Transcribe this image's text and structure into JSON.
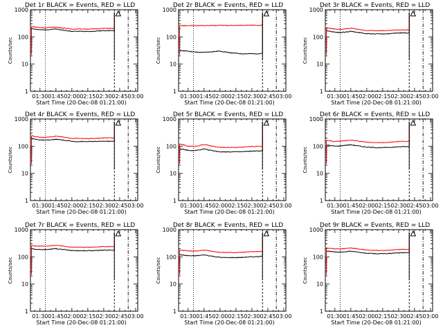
{
  "colors": {
    "events": "#000000",
    "lld": "#ff0000",
    "axes": "#000000"
  },
  "chart_data": [
    {
      "type": "line",
      "title": "Det 1r BLACK = Events, RED = LLD",
      "xlabel": "Start Time (20-Dec-08 01:21:00)",
      "ylabel": "Counts/sec",
      "x_tick_labels": [
        "01:30",
        "01:45",
        "02:00",
        "02:15",
        "02:30",
        "02:45",
        "03:00"
      ],
      "y_tick_labels": [
        "1",
        "10",
        "100",
        "1000"
      ],
      "ylim": [
        1,
        1000
      ],
      "y_scale": "log",
      "x_ticks_minutes": [
        90,
        105,
        120,
        135,
        150,
        165,
        180
      ],
      "xlim_minutes": [
        81,
        182
      ],
      "vertical_markers_minutes": {
        "dotted": 95,
        "dashed": 160,
        "dashdot": 173
      },
      "triangle_marker_minutes": 161,
      "x_minutes": [
        82,
        86,
        90,
        95,
        100,
        105,
        110,
        115,
        120,
        125,
        130,
        135,
        140,
        145,
        150,
        155,
        160
      ],
      "series": [
        {
          "name": "Events",
          "color": "#000000",
          "values": [
            200,
            190,
            185,
            180,
            190,
            195,
            180,
            170,
            160,
            160,
            160,
            160,
            160,
            165,
            170,
            170,
            170
          ]
        },
        {
          "name": "LLD",
          "color": "#ff0000",
          "values": [
            240,
            230,
            220,
            215,
            225,
            230,
            215,
            205,
            195,
            195,
            195,
            195,
            195,
            200,
            205,
            205,
            205
          ]
        }
      ]
    },
    {
      "type": "line",
      "title": "Det 2r BLACK = Events, RED = LLD",
      "xlabel": "Start Time (20-Dec-08 01:21:00)",
      "ylabel": "Counts/sec",
      "x_tick_labels": [
        "01:30",
        "01:45",
        "02:00",
        "02:15",
        "02:30",
        "02:45",
        "03:00"
      ],
      "y_tick_labels": [
        "1",
        "10",
        "100",
        "1000"
      ],
      "ylim": [
        1,
        1000
      ],
      "y_scale": "log",
      "x_ticks_minutes": [
        90,
        105,
        120,
        135,
        150,
        165,
        180
      ],
      "xlim_minutes": [
        81,
        182
      ],
      "vertical_markers_minutes": {
        "dotted": 95,
        "dashed": 160,
        "dashdot": 173
      },
      "triangle_marker_minutes": 161,
      "x_minutes": [
        82,
        86,
        90,
        95,
        100,
        105,
        110,
        115,
        120,
        125,
        130,
        135,
        140,
        145,
        150,
        155,
        160
      ],
      "series": [
        {
          "name": "Events",
          "color": "#000000",
          "values": [
            32,
            31,
            30,
            28,
            27,
            27,
            28,
            29,
            30,
            28,
            26,
            25,
            24,
            24,
            24,
            24,
            25
          ]
        },
        {
          "name": "LLD",
          "color": "#ff0000",
          "values": [
            260,
            260,
            260,
            260,
            260,
            262,
            262,
            262,
            265,
            265,
            265,
            265,
            268,
            268,
            268,
            268,
            270
          ]
        }
      ]
    },
    {
      "type": "line",
      "title": "Det 3r BLACK = Events, RED = LLD",
      "xlabel": "Start Time (20-Dec-08 01:21:00)",
      "ylabel": "Counts/sec",
      "x_tick_labels": [
        "01:30",
        "01:45",
        "02:00",
        "02:15",
        "02:30",
        "02:45",
        "03:00"
      ],
      "y_tick_labels": [
        "1",
        "10",
        "100",
        "1000"
      ],
      "ylim": [
        1,
        1000
      ],
      "y_scale": "log",
      "x_ticks_minutes": [
        90,
        105,
        120,
        135,
        150,
        165,
        180
      ],
      "xlim_minutes": [
        81,
        182
      ],
      "vertical_markers_minutes": {
        "dotted": 95,
        "dashed": 160,
        "dashdot": 173
      },
      "triangle_marker_minutes": 161,
      "x_minutes": [
        82,
        86,
        90,
        95,
        100,
        105,
        110,
        115,
        120,
        125,
        130,
        135,
        140,
        145,
        150,
        155,
        160
      ],
      "series": [
        {
          "name": "Events",
          "color": "#000000",
          "values": [
            170,
            160,
            150,
            145,
            150,
            160,
            150,
            140,
            130,
            130,
            130,
            130,
            130,
            135,
            140,
            140,
            140
          ]
        },
        {
          "name": "LLD",
          "color": "#ff0000",
          "values": [
            220,
            205,
            195,
            190,
            195,
            210,
            195,
            180,
            170,
            170,
            170,
            170,
            170,
            175,
            180,
            180,
            180
          ]
        }
      ]
    },
    {
      "type": "line",
      "title": "Det 4r BLACK = Events, RED = LLD",
      "xlabel": "Start Time (20-Dec-08 01:21:00)",
      "ylabel": "Counts/sec",
      "x_tick_labels": [
        "01:30",
        "01:45",
        "02:00",
        "02:15",
        "02:30",
        "02:45",
        "03:00"
      ],
      "y_tick_labels": [
        "1",
        "10",
        "100",
        "1000"
      ],
      "ylim": [
        1,
        1000
      ],
      "y_scale": "log",
      "x_ticks_minutes": [
        90,
        105,
        120,
        135,
        150,
        165,
        180
      ],
      "xlim_minutes": [
        81,
        182
      ],
      "vertical_markers_minutes": {
        "dotted": 95,
        "dashed": 160,
        "dashdot": 173
      },
      "triangle_marker_minutes": 161,
      "x_minutes": [
        82,
        86,
        90,
        95,
        100,
        105,
        110,
        115,
        120,
        125,
        130,
        135,
        140,
        145,
        150,
        155,
        160
      ],
      "series": [
        {
          "name": "Events",
          "color": "#000000",
          "values": [
            190,
            180,
            170,
            165,
            170,
            180,
            170,
            160,
            150,
            148,
            148,
            148,
            148,
            150,
            152,
            152,
            150
          ]
        },
        {
          "name": "LLD",
          "color": "#ff0000",
          "values": [
            240,
            225,
            215,
            210,
            220,
            235,
            220,
            205,
            195,
            192,
            190,
            190,
            192,
            195,
            200,
            200,
            200
          ]
        }
      ]
    },
    {
      "type": "line",
      "title": "Det 5r BLACK = Events, RED = LLD",
      "xlabel": "Start Time (20-Dec-08 01:21:00)",
      "ylabel": "Counts/sec",
      "x_tick_labels": [
        "01:30",
        "01:45",
        "02:00",
        "02:15",
        "02:30",
        "02:45",
        "03:00"
      ],
      "y_tick_labels": [
        "1",
        "10",
        "100",
        "1000"
      ],
      "ylim": [
        1,
        1000
      ],
      "y_scale": "log",
      "x_ticks_minutes": [
        90,
        105,
        120,
        135,
        150,
        165,
        180
      ],
      "xlim_minutes": [
        81,
        182
      ],
      "vertical_markers_minutes": {
        "dotted": 95,
        "dashed": 160,
        "dashdot": 173
      },
      "triangle_marker_minutes": 161,
      "x_minutes": [
        82,
        86,
        90,
        95,
        100,
        105,
        110,
        115,
        120,
        125,
        130,
        135,
        140,
        145,
        150,
        155,
        160
      ],
      "series": [
        {
          "name": "Events",
          "color": "#000000",
          "values": [
            80,
            75,
            70,
            68,
            72,
            78,
            72,
            66,
            62,
            62,
            62,
            62,
            62,
            64,
            66,
            66,
            68
          ]
        },
        {
          "name": "LLD",
          "color": "#ff0000",
          "values": [
            120,
            110,
            100,
            98,
            104,
            115,
            105,
            96,
            90,
            90,
            90,
            90,
            92,
            95,
            98,
            98,
            100
          ]
        }
      ]
    },
    {
      "type": "line",
      "title": "Det 6r BLACK = Events, RED = LLD",
      "xlabel": "Start Time (20-Dec-08 01:21:00)",
      "ylabel": "Counts/sec",
      "x_tick_labels": [
        "01:30",
        "01:45",
        "02:00",
        "02:15",
        "02:30",
        "02:45",
        "03:00"
      ],
      "y_tick_labels": [
        "1",
        "10",
        "100",
        "1000"
      ],
      "ylim": [
        1,
        1000
      ],
      "y_scale": "log",
      "x_ticks_minutes": [
        90,
        105,
        120,
        135,
        150,
        165,
        180
      ],
      "xlim_minutes": [
        81,
        182
      ],
      "vertical_markers_minutes": {
        "dotted": 95,
        "dashed": 160,
        "dashdot": 173
      },
      "triangle_marker_minutes": 161,
      "x_minutes": [
        82,
        86,
        90,
        95,
        100,
        105,
        110,
        115,
        120,
        125,
        130,
        135,
        140,
        145,
        150,
        155,
        160
      ],
      "series": [
        {
          "name": "Events",
          "color": "#000000",
          "values": [
            110,
            105,
            100,
            102,
            108,
            112,
            105,
            98,
            92,
            90,
            88,
            88,
            90,
            92,
            95,
            96,
            96
          ]
        },
        {
          "name": "LLD",
          "color": "#ff0000",
          "values": [
            165,
            155,
            150,
            152,
            160,
            168,
            158,
            148,
            140,
            138,
            135,
            135,
            138,
            142,
            148,
            150,
            150
          ]
        }
      ]
    },
    {
      "type": "line",
      "title": "Det 7r BLACK = Events, RED = LLD",
      "xlabel": "Start Time (20-Dec-08 01:21:00)",
      "ylabel": "Counts/sec",
      "x_tick_labels": [
        "01:30",
        "01:45",
        "02:00",
        "02:15",
        "02:30",
        "02:45",
        "03:00"
      ],
      "y_tick_labels": [
        "1",
        "10",
        "100",
        "1000"
      ],
      "ylim": [
        1,
        1000
      ],
      "y_scale": "log",
      "x_ticks_minutes": [
        90,
        105,
        120,
        135,
        150,
        165,
        180
      ],
      "xlim_minutes": [
        81,
        182
      ],
      "vertical_markers_minutes": {
        "dotted": 95,
        "dashed": 160,
        "dashdot": 173
      },
      "triangle_marker_minutes": 161,
      "x_minutes": [
        82,
        86,
        90,
        95,
        100,
        105,
        110,
        115,
        120,
        125,
        130,
        135,
        140,
        145,
        150,
        155,
        160
      ],
      "series": [
        {
          "name": "Events",
          "color": "#000000",
          "values": [
            200,
            190,
            185,
            185,
            192,
            200,
            190,
            180,
            170,
            168,
            168,
            168,
            170,
            172,
            175,
            176,
            176
          ]
        },
        {
          "name": "LLD",
          "color": "#ff0000",
          "values": [
            260,
            250,
            245,
            248,
            255,
            265,
            252,
            240,
            228,
            225,
            225,
            225,
            228,
            232,
            236,
            238,
            238
          ]
        }
      ]
    },
    {
      "type": "line",
      "title": "Det 8r BLACK = Events, RED = LLD",
      "xlabel": "Start Time (20-Dec-08 01:21:00)",
      "ylabel": "Counts/sec",
      "x_tick_labels": [
        "01:30",
        "01:45",
        "02:00",
        "02:15",
        "02:30",
        "02:45",
        "03:00"
      ],
      "y_tick_labels": [
        "1",
        "10",
        "100",
        "1000"
      ],
      "ylim": [
        1,
        1000
      ],
      "y_scale": "log",
      "x_ticks_minutes": [
        90,
        105,
        120,
        135,
        150,
        165,
        180
      ],
      "xlim_minutes": [
        81,
        182
      ],
      "vertical_markers_minutes": {
        "dotted": 95,
        "dashed": 160,
        "dashdot": 173
      },
      "triangle_marker_minutes": 161,
      "x_minutes": [
        82,
        86,
        90,
        95,
        100,
        105,
        110,
        115,
        120,
        125,
        130,
        135,
        140,
        145,
        150,
        155,
        160
      ],
      "series": [
        {
          "name": "Events",
          "color": "#000000",
          "values": [
            120,
            115,
            110,
            108,
            112,
            118,
            110,
            102,
            96,
            94,
            94,
            94,
            95,
            98,
            100,
            102,
            104
          ]
        },
        {
          "name": "LLD",
          "color": "#ff0000",
          "values": [
            180,
            172,
            165,
            162,
            168,
            178,
            166,
            155,
            146,
            144,
            144,
            144,
            146,
            150,
            154,
            156,
            158
          ]
        }
      ]
    },
    {
      "type": "line",
      "title": "Det 9r BLACK = Events, RED = LLD",
      "xlabel": "Start Time (20-Dec-08 01:21:00)",
      "ylabel": "Counts/sec",
      "x_tick_labels": [
        "01:30",
        "01:45",
        "02:00",
        "02:15",
        "02:30",
        "02:45",
        "03:00"
      ],
      "y_tick_labels": [
        "1",
        "10",
        "100",
        "1000"
      ],
      "ylim": [
        1,
        1000
      ],
      "y_scale": "log",
      "x_ticks_minutes": [
        90,
        105,
        120,
        135,
        150,
        165,
        180
      ],
      "xlim_minutes": [
        81,
        182
      ],
      "vertical_markers_minutes": {
        "dotted": 95,
        "dashed": 160,
        "dashdot": 173
      },
      "triangle_marker_minutes": 161,
      "x_minutes": [
        82,
        86,
        90,
        95,
        100,
        105,
        110,
        115,
        120,
        125,
        130,
        135,
        140,
        145,
        150,
        155,
        160
      ],
      "series": [
        {
          "name": "Events",
          "color": "#000000",
          "values": [
            165,
            158,
            150,
            148,
            155,
            162,
            152,
            142,
            135,
            132,
            130,
            130,
            132,
            135,
            140,
            142,
            142
          ]
        },
        {
          "name": "LLD",
          "color": "#ff0000",
          "values": [
            215,
            205,
            198,
            195,
            202,
            212,
            200,
            188,
            178,
            175,
            172,
            172,
            175,
            180,
            185,
            188,
            188
          ]
        }
      ]
    }
  ]
}
